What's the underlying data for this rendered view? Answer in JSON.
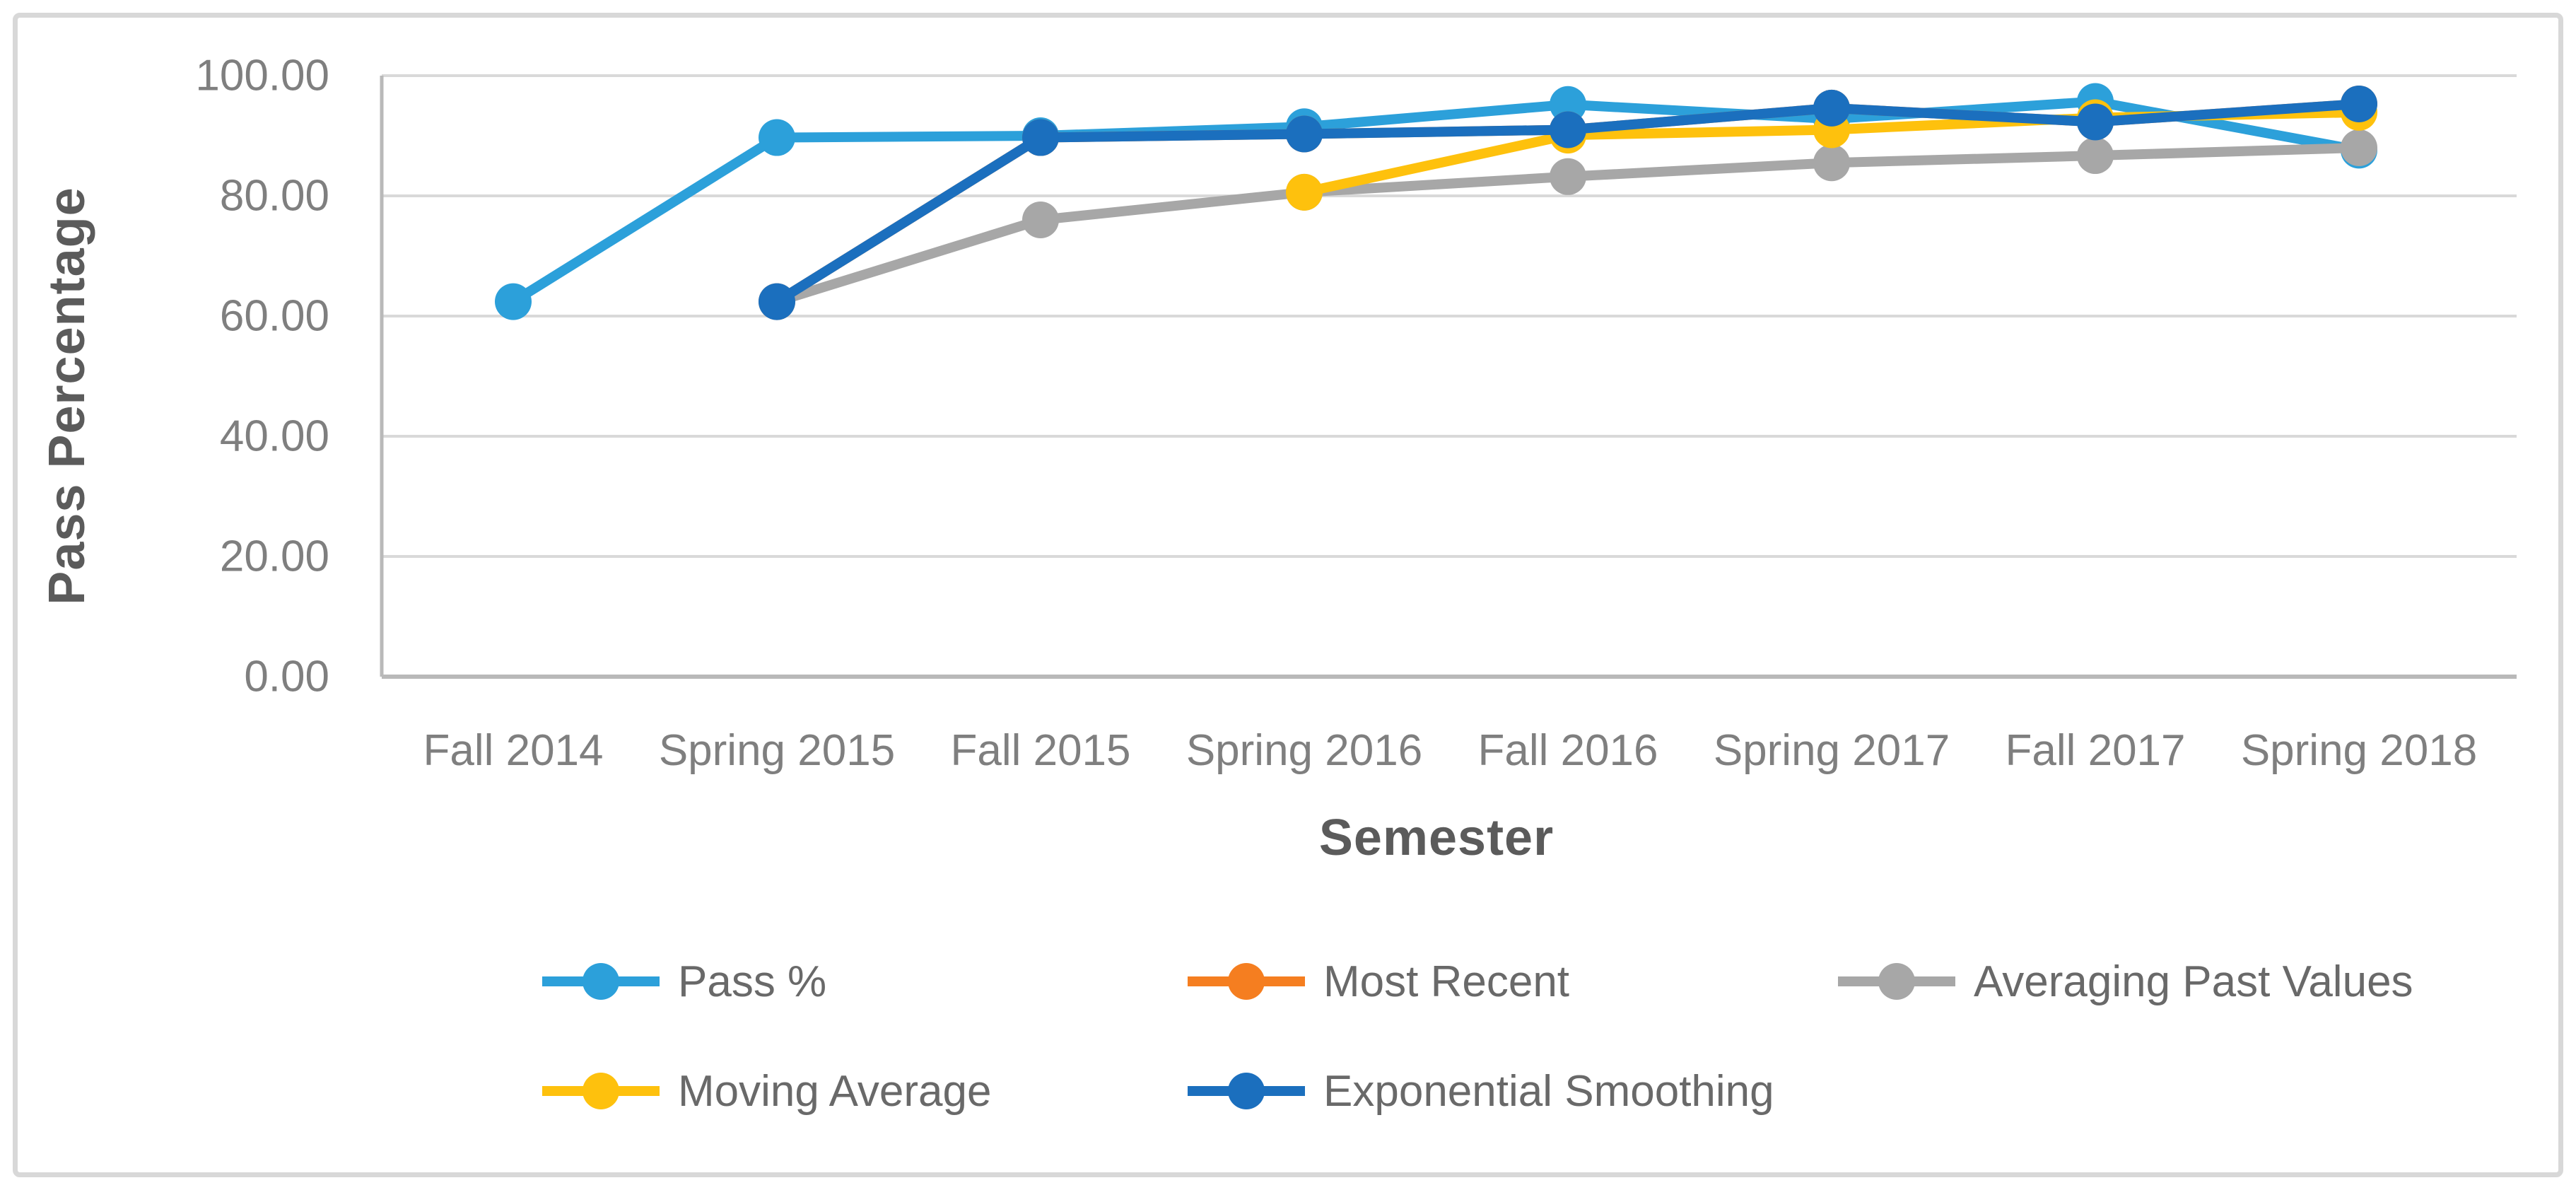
{
  "figure": {
    "kind": "excel-style line chart",
    "background": "#ffffff",
    "border_color": "#d8d8d8"
  },
  "chart_data": {
    "type": "line",
    "title": "",
    "xlabel": "Semester",
    "ylabel": "Pass Percentage",
    "ylim": [
      0,
      100
    ],
    "ytick_step": 20,
    "ytick_labels": [
      "0.00",
      "20.00",
      "40.00",
      "60.00",
      "80.00",
      "100.00"
    ],
    "grid": true,
    "legend_position": "bottom",
    "categories": [
      "Fall 2014",
      "Spring 2015",
      "Fall 2015",
      "Spring 2016",
      "Fall 2016",
      "Spring 2017",
      "Fall 2017",
      "Spring 2018"
    ],
    "series": [
      {
        "name": "Pass %",
        "color": "#2CA0DA",
        "values": [
          62.4,
          89.7,
          90.0,
          91.5,
          95.2,
          92.8,
          95.7,
          87.6
        ]
      },
      {
        "name": "Most Recent",
        "color": "#F57E20",
        "values": [
          null,
          62.4,
          89.7,
          90.3,
          91.0,
          94.6,
          92.3,
          95.3
        ]
      },
      {
        "name": "Averaging Past Values",
        "color": "#A7A7A7",
        "values": [
          null,
          62.4,
          76.0,
          80.6,
          83.2,
          85.5,
          86.7,
          88.0
        ]
      },
      {
        "name": "Moving Average",
        "color": "#FEC10D",
        "values": [
          null,
          null,
          null,
          80.6,
          90.1,
          91.0,
          93.0,
          93.9
        ]
      },
      {
        "name": "Exponential Smoothing",
        "color": "#1B6FBE",
        "values": [
          null,
          62.4,
          89.7,
          90.3,
          91.0,
          94.6,
          92.3,
          95.3
        ]
      }
    ],
    "colors": {
      "gridline": "#D9D9D9",
      "axis_line": "#B9B9B9",
      "tick_label": "#7F7F7F",
      "axis_title": "#5B5B5B",
      "legend_text": "#696969"
    }
  }
}
